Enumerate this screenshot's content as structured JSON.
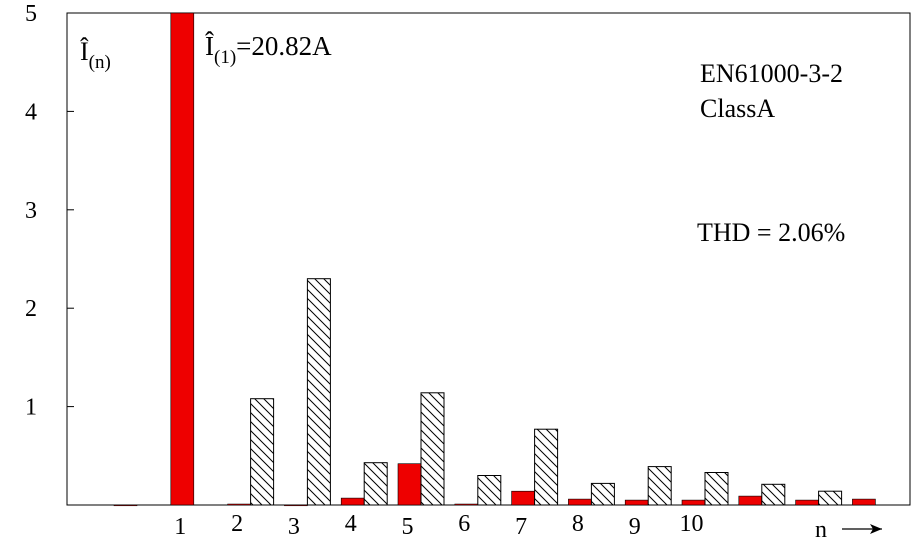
{
  "chart_data": {
    "type": "bar",
    "y_axis_label": "Î(n)",
    "x_axis_label": "n",
    "ylim": [
      0,
      5
    ],
    "y_ticks": [
      {
        "value": 1,
        "label": "1"
      },
      {
        "value": 2,
        "label": "2"
      },
      {
        "value": 3,
        "label": "3"
      },
      {
        "value": 4,
        "label": "4"
      },
      {
        "value": 5,
        "label": "5"
      }
    ],
    "x_tick_labels": [
      "1",
      "2",
      "3",
      "4",
      "5",
      "6",
      "7",
      "8",
      "9",
      "10"
    ],
    "annotations": {
      "fundamental": "Î(1)=20.82A",
      "standard_line1": "EN61000-3-2",
      "standard_line2": "ClassA",
      "thd": "THD = 2.06%"
    },
    "series": [
      {
        "style": "solid",
        "color": "#ee0000",
        "values": [
          0,
          5.0,
          0.01,
          0,
          0.07,
          0.42,
          0.01,
          0.14,
          0.06,
          0.05,
          0.05,
          0.09,
          0.05,
          0.06
        ]
      },
      {
        "style": "hatched",
        "color": "#000000",
        "values": [
          null,
          null,
          1.08,
          2.3,
          0.43,
          1.14,
          0.3,
          0.77,
          0.22,
          0.39,
          0.33,
          0.21,
          0.14,
          null
        ]
      }
    ]
  }
}
